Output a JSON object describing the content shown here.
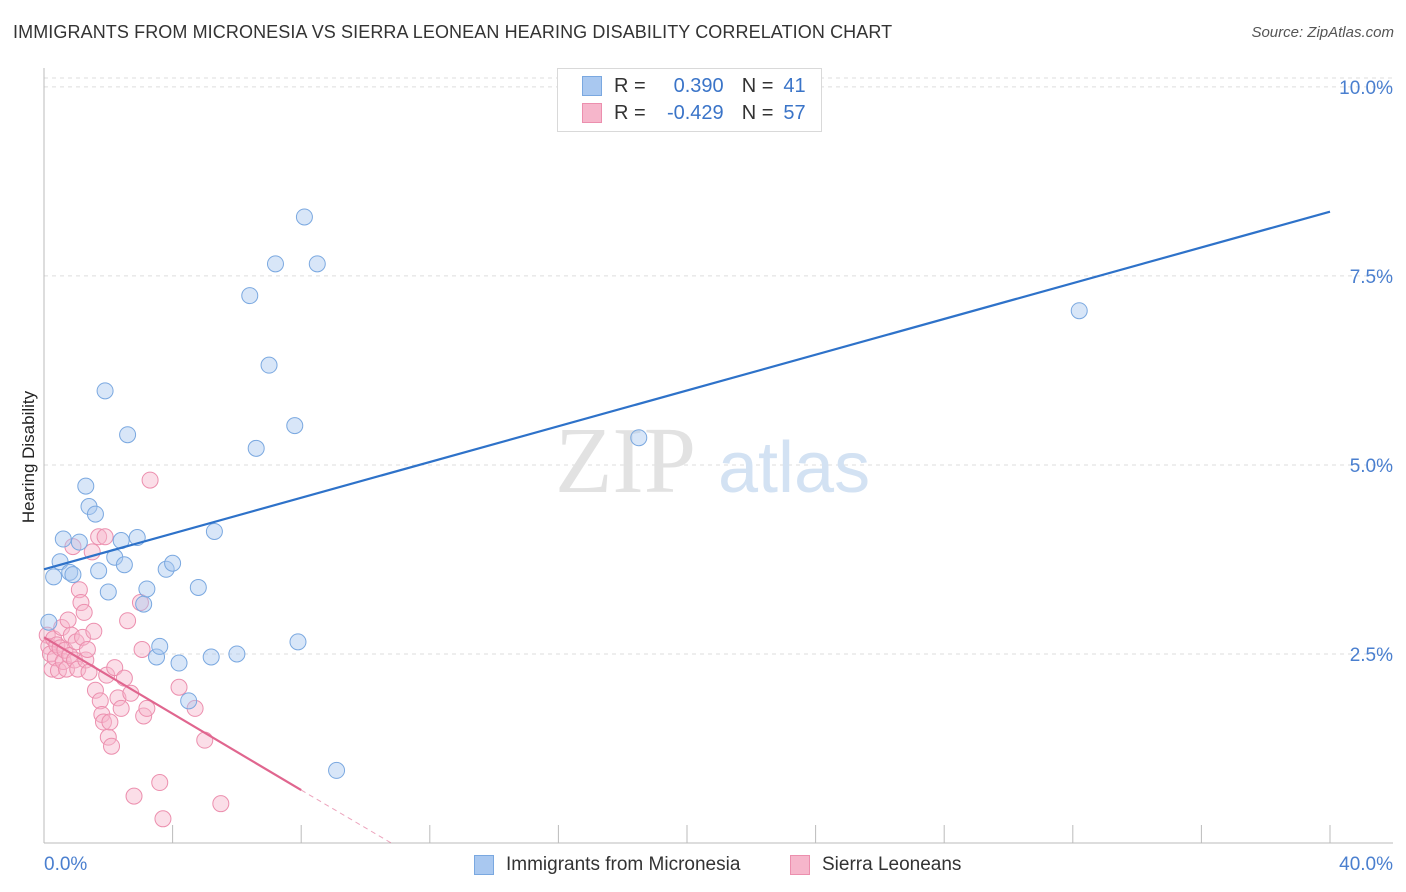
{
  "header": {
    "title": "IMMIGRANTS FROM MICRONESIA VS SIERRA LEONEAN HEARING DISABILITY CORRELATION CHART",
    "source": "Source: ZipAtlas.com"
  },
  "watermark": {
    "part1": "ZIP",
    "part2": "atlas"
  },
  "legend_top": {
    "rows": [
      {
        "r_label": "R =",
        "r_value": "0.390",
        "n_label": "N =",
        "n_value": "41"
      },
      {
        "r_label": "R =",
        "r_value": "-0.429",
        "n_label": "N =",
        "n_value": "57"
      }
    ]
  },
  "legend_bottom": {
    "items": [
      "Immigrants from Micronesia",
      "Sierra Leoneans"
    ]
  },
  "colors": {
    "blue_fill": "#a9c8f0",
    "blue_stroke": "#7aa8e0",
    "blue_line": "#2e72c9",
    "pink_fill": "#f6b6cb",
    "pink_stroke": "#ec8fae",
    "pink_line": "#e0668f",
    "axis_text": "#4a7fcf",
    "grid": "#dddddd"
  },
  "chart_data": {
    "type": "scatter",
    "title": "IMMIGRANTS FROM MICRONESIA VS SIERRA LEONEAN HEARING DISABILITY CORRELATION CHART",
    "xlabel": "",
    "ylabel": "Hearing Disability",
    "xlim": [
      0,
      40
    ],
    "ylim": [
      0,
      10.25
    ],
    "x_tick_labels": [
      "0.0%",
      "40.0%"
    ],
    "y_ticks": [
      2.5,
      5.0,
      7.5,
      10.0
    ],
    "y_tick_labels": [
      "2.5%",
      "5.0%",
      "7.5%",
      "10.0%"
    ],
    "grid": true,
    "legend_position": "top-center",
    "series": [
      {
        "name": "Immigrants from Micronesia",
        "color": "#a9c8f0",
        "R": 0.39,
        "N": 41,
        "points": [
          [
            0.15,
            2.92
          ],
          [
            0.3,
            3.52
          ],
          [
            0.5,
            3.72
          ],
          [
            0.6,
            4.02
          ],
          [
            0.8,
            3.58
          ],
          [
            0.9,
            3.55
          ],
          [
            1.1,
            3.98
          ],
          [
            1.3,
            4.72
          ],
          [
            1.4,
            4.45
          ],
          [
            1.6,
            4.35
          ],
          [
            1.7,
            3.6
          ],
          [
            1.9,
            5.98
          ],
          [
            2.0,
            3.32
          ],
          [
            2.2,
            3.78
          ],
          [
            2.4,
            4.0
          ],
          [
            2.5,
            3.68
          ],
          [
            2.6,
            5.4
          ],
          [
            2.9,
            4.04
          ],
          [
            3.1,
            3.16
          ],
          [
            3.2,
            3.36
          ],
          [
            3.5,
            2.46
          ],
          [
            3.6,
            2.6
          ],
          [
            3.8,
            3.62
          ],
          [
            4.0,
            3.7
          ],
          [
            4.2,
            2.38
          ],
          [
            4.5,
            1.88
          ],
          [
            4.8,
            3.38
          ],
          [
            5.2,
            2.46
          ],
          [
            5.3,
            4.12
          ],
          [
            6.0,
            2.5
          ],
          [
            6.4,
            7.24
          ],
          [
            6.6,
            5.22
          ],
          [
            7.0,
            6.32
          ],
          [
            7.2,
            7.66
          ],
          [
            7.8,
            5.52
          ],
          [
            7.9,
            2.66
          ],
          [
            8.1,
            8.28
          ],
          [
            8.5,
            7.66
          ],
          [
            9.1,
            0.96
          ],
          [
            18.5,
            5.36
          ],
          [
            32.2,
            7.04
          ]
        ],
        "trend": {
          "x0": 0,
          "y0": 3.62,
          "x1": 40,
          "y1": 8.35
        }
      },
      {
        "name": "Sierra Leoneans",
        "color": "#f6b6cb",
        "R": -0.429,
        "N": 57,
        "points": [
          [
            0.1,
            2.75
          ],
          [
            0.15,
            2.6
          ],
          [
            0.2,
            2.5
          ],
          [
            0.25,
            2.3
          ],
          [
            0.3,
            2.7
          ],
          [
            0.35,
            2.45
          ],
          [
            0.4,
            2.62
          ],
          [
            0.45,
            2.28
          ],
          [
            0.5,
            2.58
          ],
          [
            0.55,
            2.85
          ],
          [
            0.6,
            2.4
          ],
          [
            0.65,
            2.55
          ],
          [
            0.7,
            2.3
          ],
          [
            0.75,
            2.95
          ],
          [
            0.8,
            2.48
          ],
          [
            0.85,
            2.75
          ],
          [
            0.9,
            3.92
          ],
          [
            0.95,
            2.42
          ],
          [
            1.0,
            2.66
          ],
          [
            1.05,
            2.3
          ],
          [
            1.1,
            3.35
          ],
          [
            1.15,
            3.18
          ],
          [
            1.2,
            2.72
          ],
          [
            1.25,
            3.05
          ],
          [
            1.3,
            2.42
          ],
          [
            1.35,
            2.56
          ],
          [
            1.4,
            2.26
          ],
          [
            1.5,
            3.85
          ],
          [
            1.55,
            2.8
          ],
          [
            1.6,
            2.02
          ],
          [
            1.7,
            4.05
          ],
          [
            1.75,
            1.88
          ],
          [
            1.8,
            1.7
          ],
          [
            1.85,
            1.6
          ],
          [
            1.9,
            4.05
          ],
          [
            1.95,
            2.22
          ],
          [
            2.0,
            1.4
          ],
          [
            2.05,
            1.6
          ],
          [
            2.1,
            1.28
          ],
          [
            2.2,
            2.32
          ],
          [
            2.3,
            1.92
          ],
          [
            2.4,
            1.78
          ],
          [
            2.5,
            2.18
          ],
          [
            2.6,
            2.94
          ],
          [
            2.7,
            1.98
          ],
          [
            2.8,
            0.62
          ],
          [
            3.0,
            3.18
          ],
          [
            3.05,
            2.56
          ],
          [
            3.1,
            1.68
          ],
          [
            3.2,
            1.78
          ],
          [
            3.3,
            4.8
          ],
          [
            3.6,
            0.8
          ],
          [
            3.7,
            0.32
          ],
          [
            4.2,
            2.06
          ],
          [
            4.7,
            1.78
          ],
          [
            5.0,
            1.36
          ],
          [
            5.5,
            0.52
          ]
        ],
        "trend": {
          "x0": 0,
          "y0": 2.72,
          "x1": 8.0,
          "y1": 0.7
        },
        "trend_dashed": {
          "x0": 8.0,
          "y0": 0.7,
          "x1": 10.8,
          "y1": 0.0
        }
      }
    ]
  }
}
